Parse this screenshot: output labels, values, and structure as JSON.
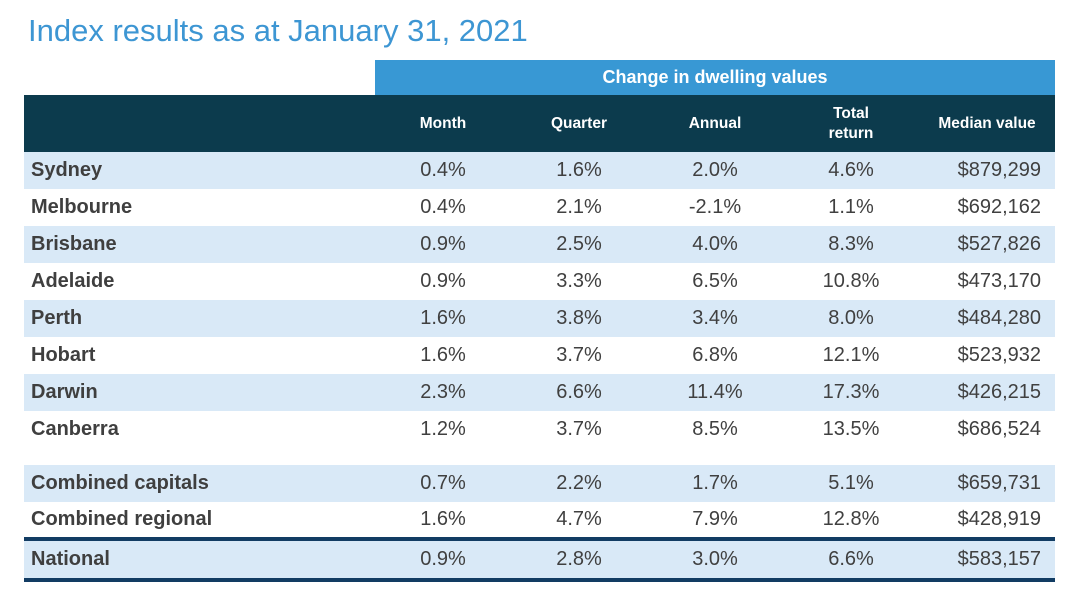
{
  "page": {
    "title": "Index results as at January 31, 2021"
  },
  "colors": {
    "title_blue": "#3D96D3",
    "band_blue": "#3898D4",
    "header_dark_teal": "#0C3B4D",
    "row_stripe_blue": "#D9E9F7",
    "national_border_navy": "#123C63",
    "body_text": "#404040"
  },
  "chart_data": {
    "type": "table",
    "title": "Index results as at January 31, 2021",
    "column_group_header": "Change in dwelling values",
    "columns": [
      "Month",
      "Quarter",
      "Annual",
      "Total return",
      "Median value"
    ],
    "rows": [
      {
        "region": "Sydney",
        "month": "0.4%",
        "quarter": "1.6%",
        "annual": "2.0%",
        "total_return": "4.6%",
        "median_value": "$879,299"
      },
      {
        "region": "Melbourne",
        "month": "0.4%",
        "quarter": "2.1%",
        "annual": "-2.1%",
        "total_return": "1.1%",
        "median_value": "$692,162"
      },
      {
        "region": "Brisbane",
        "month": "0.9%",
        "quarter": "2.5%",
        "annual": "4.0%",
        "total_return": "8.3%",
        "median_value": "$527,826"
      },
      {
        "region": "Adelaide",
        "month": "0.9%",
        "quarter": "3.3%",
        "annual": "6.5%",
        "total_return": "10.8%",
        "median_value": "$473,170"
      },
      {
        "region": "Perth",
        "month": "1.6%",
        "quarter": "3.8%",
        "annual": "3.4%",
        "total_return": "8.0%",
        "median_value": "$484,280"
      },
      {
        "region": "Hobart",
        "month": "1.6%",
        "quarter": "3.7%",
        "annual": "6.8%",
        "total_return": "12.1%",
        "median_value": "$523,932"
      },
      {
        "region": "Darwin",
        "month": "2.3%",
        "quarter": "6.6%",
        "annual": "11.4%",
        "total_return": "17.3%",
        "median_value": "$426,215"
      },
      {
        "region": "Canberra",
        "month": "1.2%",
        "quarter": "3.7%",
        "annual": "8.5%",
        "total_return": "13.5%",
        "median_value": "$686,524"
      },
      {
        "region": "Combined capitals",
        "month": "0.7%",
        "quarter": "2.2%",
        "annual": "1.7%",
        "total_return": "5.1%",
        "median_value": "$659,731"
      },
      {
        "region": "Combined regional",
        "month": "1.6%",
        "quarter": "4.7%",
        "annual": "7.9%",
        "total_return": "12.8%",
        "median_value": "$428,919"
      },
      {
        "region": "National",
        "month": "0.9%",
        "quarter": "2.8%",
        "annual": "3.0%",
        "total_return": "6.6%",
        "median_value": "$583,157"
      }
    ]
  }
}
